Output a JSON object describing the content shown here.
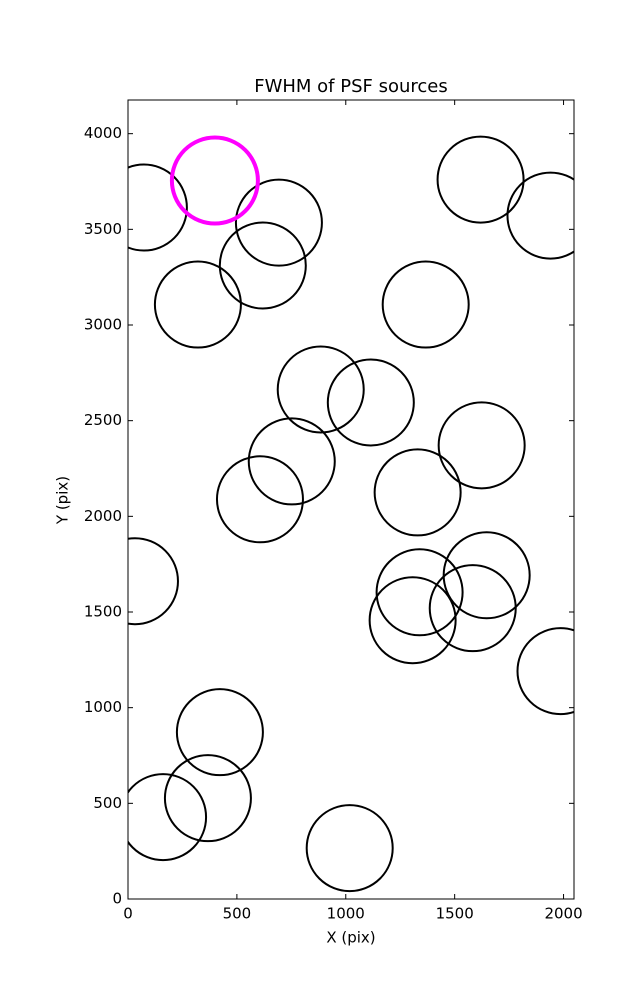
{
  "chart_data": {
    "type": "scatter",
    "title": "FWHM of PSF sources",
    "x_label": "X (pix)",
    "y_label": "Y (pix)",
    "xlim": [
      0,
      2048
    ],
    "ylim": [
      0,
      4176
    ],
    "xticks": [
      0,
      500,
      1000,
      1500,
      2000
    ],
    "yticks": [
      0,
      500,
      1000,
      1500,
      2000,
      2500,
      3000,
      3500,
      4000
    ],
    "series": [
      {
        "color": "#000000",
        "x": [
          73,
          693,
          619,
          321,
          1619,
          1940,
          1367,
          885,
          1115,
          1624,
          752,
          606,
          1330,
          32,
          1647,
          1339,
          1583,
          1307,
          1986,
          422,
          367,
          161,
          1018
        ],
        "values": [
          3614,
          3535,
          3311,
          3107,
          3760,
          3572,
          3107,
          2663,
          2595,
          2371,
          2287,
          2089,
          2125,
          1661,
          1692,
          1603,
          1520,
          1457,
          1191,
          872,
          527,
          428,
          266
        ]
      },
      {
        "color": "#ff00ff",
        "x": [
          399
        ],
        "values": [
          3755
        ]
      }
    ]
  }
}
